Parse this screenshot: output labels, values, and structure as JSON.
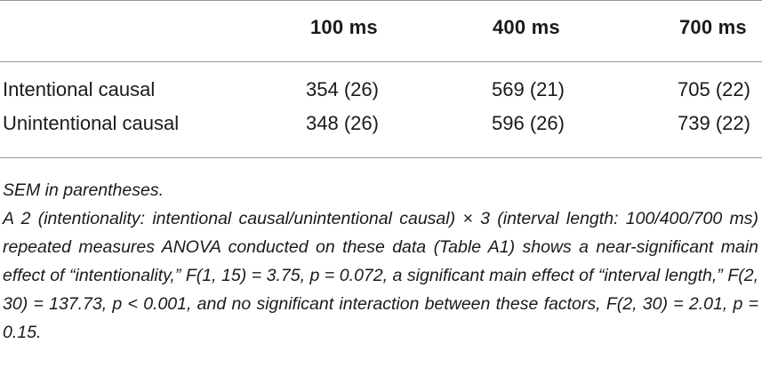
{
  "table": {
    "headers": [
      "100 ms",
      "400 ms",
      "700 ms"
    ],
    "rows": [
      {
        "label": "Intentional causal",
        "values": [
          "354 (26)",
          "569 (21)",
          "705 (22)"
        ]
      },
      {
        "label": "Unintentional causal",
        "values": [
          "348 (26)",
          "596 (26)",
          "739 (22)"
        ]
      }
    ]
  },
  "footnote": {
    "note": "SEM in parentheses.",
    "body": "A 2 (intentionality: intentional causal/unintentional causal) × 3 (interval length: 100/400/700 ms) repeated measures ANOVA conducted on these data (Table A1) shows a near-significant main effect of “intentionality,” F(1, 15) = 3.75, p = 0.072, a significant main effect of “interval length,” F(2, 30) = 137.73, p < 0.001, and no significant interaction between these factors, F(2, 30) = 2.01, p = 0.15."
  }
}
